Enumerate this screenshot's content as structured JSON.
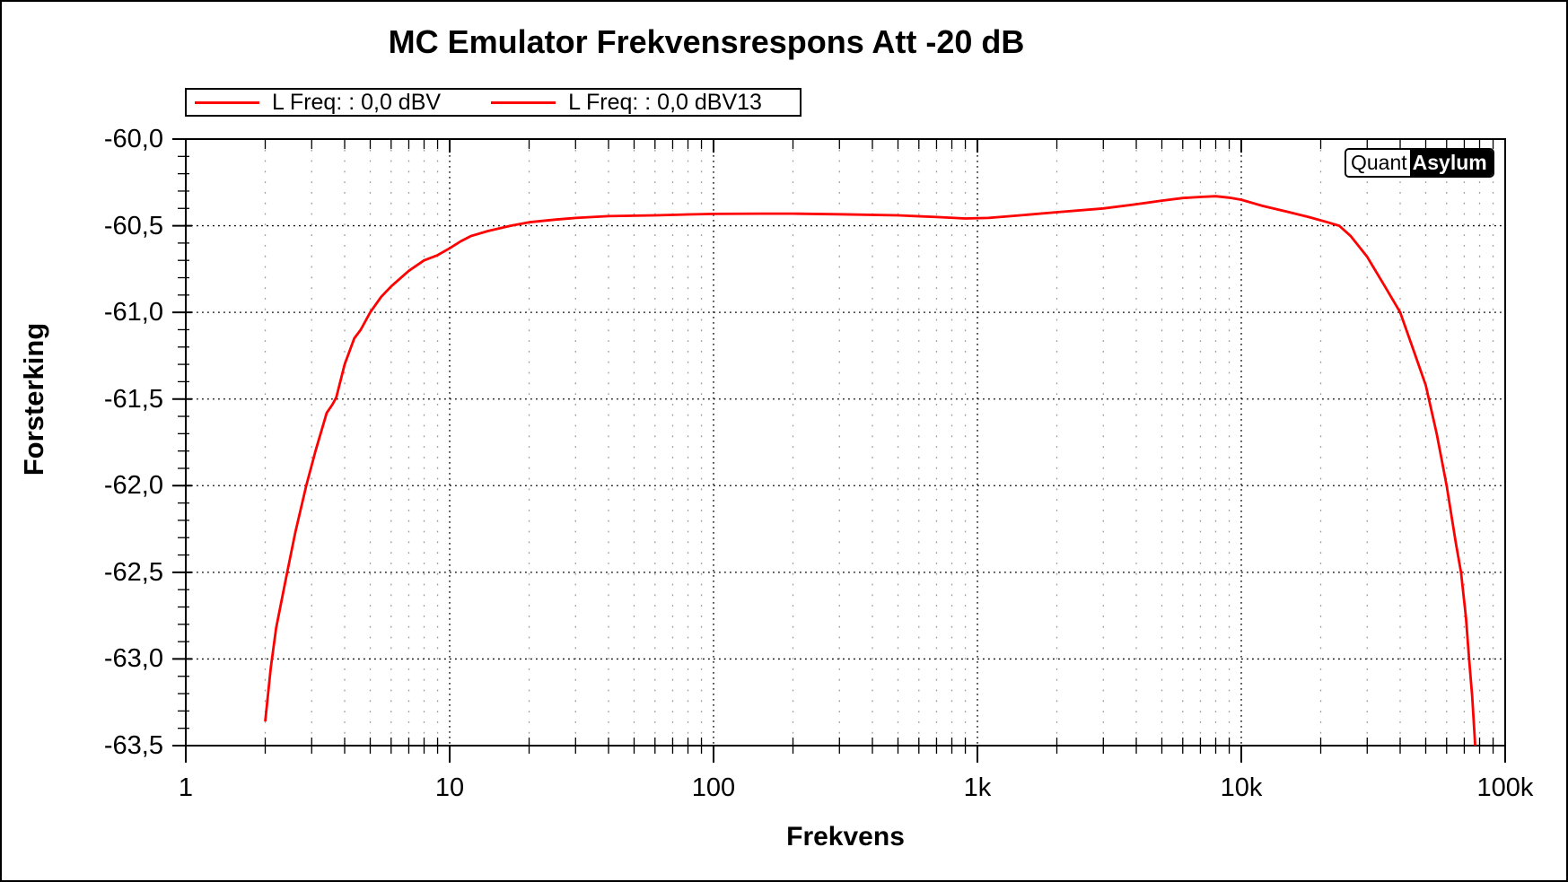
{
  "title": "MC Emulator Frekvensrespons Att -20 dB",
  "legend": {
    "entries": [
      {
        "label": "L Freq: : 0,0 dBV",
        "color": "#ff0000"
      },
      {
        "label": "L Freq: : 0,0 dBV13",
        "color": "#ff0000"
      }
    ]
  },
  "logo": {
    "left_text": "Quant",
    "right_text": "Asylum"
  },
  "colors": {
    "trace": "#ff0000",
    "axis": "#000000",
    "major_grid": "#000000",
    "minor_grid": "#9a9a9a",
    "background": "#ffffff"
  },
  "chart_data": {
    "type": "line",
    "title": "MC Emulator Frekvensrespons Att -20 dB",
    "xlabel": "Frekvens",
    "ylabel": "Forsterking",
    "x_scale": "log",
    "xlim": [
      1,
      100000
    ],
    "ylim": [
      -63.5,
      -60.0
    ],
    "y_major_step": 0.5,
    "y_minor_step": 0.1,
    "grid": "major-dotted-black, minor-vertical-dotted-gray",
    "legend_position": "top-left-outside",
    "x_ticks": [
      {
        "f": 1,
        "label": "1"
      },
      {
        "f": 10,
        "label": "10"
      },
      {
        "f": 100,
        "label": "100"
      },
      {
        "f": 1000,
        "label": "1k"
      },
      {
        "f": 10000,
        "label": "10k"
      },
      {
        "f": 100000,
        "label": "100k"
      }
    ],
    "x_minor_multipliers": [
      2,
      3,
      4,
      5,
      6,
      7,
      8,
      9
    ],
    "y_ticks": [
      {
        "v": -60.0,
        "label": "-60,0"
      },
      {
        "v": -60.5,
        "label": "-60,5"
      },
      {
        "v": -61.0,
        "label": "-61,0"
      },
      {
        "v": -61.5,
        "label": "-61,5"
      },
      {
        "v": -62.0,
        "label": "-62,0"
      },
      {
        "v": -62.5,
        "label": "-62,5"
      },
      {
        "v": -63.0,
        "label": "-63,0"
      },
      {
        "v": -63.5,
        "label": "-63,5"
      }
    ],
    "series_names": [
      "L Freq: : 0,0 dBV",
      "L Freq: : 0,0 dBV13"
    ],
    "note": "Both series overlap as a single visible red trace",
    "curve_points": [
      [
        2.0,
        -63.36
      ],
      [
        2.1,
        -63.05
      ],
      [
        2.2,
        -62.82
      ],
      [
        2.4,
        -62.53
      ],
      [
        2.6,
        -62.27
      ],
      [
        2.86,
        -62.0
      ],
      [
        3.1,
        -61.8
      ],
      [
        3.42,
        -61.58
      ],
      [
        3.6,
        -61.53
      ],
      [
        3.72,
        -61.49
      ],
      [
        4.0,
        -61.3
      ],
      [
        4.35,
        -61.15
      ],
      [
        4.6,
        -61.1
      ],
      [
        5.0,
        -61.0
      ],
      [
        5.5,
        -60.91
      ],
      [
        6.0,
        -60.85
      ],
      [
        7.0,
        -60.76
      ],
      [
        8.0,
        -60.7
      ],
      [
        9.0,
        -60.67
      ],
      [
        10,
        -60.63
      ],
      [
        11,
        -60.59
      ],
      [
        12,
        -60.56
      ],
      [
        14,
        -60.53
      ],
      [
        17,
        -60.5
      ],
      [
        20,
        -60.48
      ],
      [
        25,
        -60.465
      ],
      [
        30,
        -60.455
      ],
      [
        40,
        -60.445
      ],
      [
        60,
        -60.44
      ],
      [
        80,
        -60.435
      ],
      [
        100,
        -60.432
      ],
      [
        150,
        -60.43
      ],
      [
        200,
        -60.43
      ],
      [
        300,
        -60.434
      ],
      [
        500,
        -60.44
      ],
      [
        700,
        -60.45
      ],
      [
        900,
        -60.458
      ],
      [
        1100,
        -60.455
      ],
      [
        1400,
        -60.442
      ],
      [
        2000,
        -60.422
      ],
      [
        3000,
        -60.4
      ],
      [
        4000,
        -60.376
      ],
      [
        5000,
        -60.355
      ],
      [
        6000,
        -60.34
      ],
      [
        7000,
        -60.334
      ],
      [
        8000,
        -60.33
      ],
      [
        9000,
        -60.338
      ],
      [
        10000,
        -60.35
      ],
      [
        12000,
        -60.385
      ],
      [
        15000,
        -60.42
      ],
      [
        18000,
        -60.45
      ],
      [
        21000,
        -60.478
      ],
      [
        23500,
        -60.5
      ],
      [
        26000,
        -60.56
      ],
      [
        30000,
        -60.68
      ],
      [
        35000,
        -60.85
      ],
      [
        40000,
        -61.0
      ],
      [
        45000,
        -61.22
      ],
      [
        50000,
        -61.42
      ],
      [
        55000,
        -61.7
      ],
      [
        60000,
        -62.0
      ],
      [
        65000,
        -62.33
      ],
      [
        68000,
        -62.5
      ],
      [
        71000,
        -62.76
      ],
      [
        73000,
        -63.0
      ],
      [
        75000,
        -63.22
      ],
      [
        77000,
        -63.5
      ]
    ]
  }
}
